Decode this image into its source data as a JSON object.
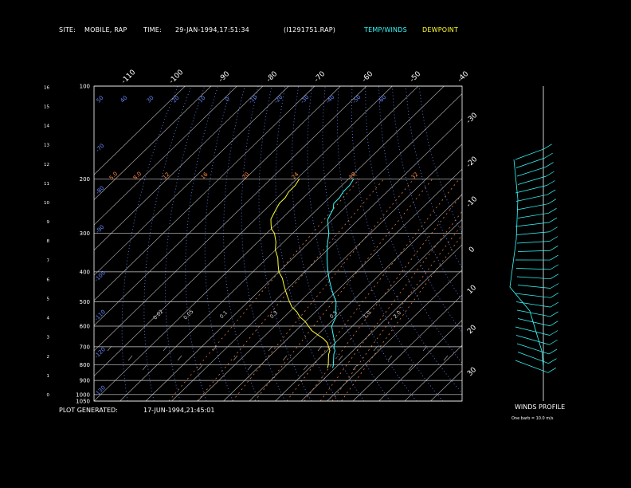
{
  "header": {
    "site_label": "SITE:",
    "site_value": "MOBILE, RAP",
    "time_label": "TIME:",
    "time_value": "29-JAN-1994,17:51:34",
    "file_value": "(I1291751.RAP)",
    "legend_temp": "TEMP/WINDS",
    "legend_dew": "DEWPOINT"
  },
  "footer": {
    "generated_label": "PLOT GENERATED:",
    "generated_value": "17-JUN-1994,21:45:01",
    "winds_title": "WINDS PROFILE",
    "barb_note": "One barb = 10.0 m/s"
  },
  "colors": {
    "temp": "#33ffff",
    "dewpoint": "#ffff33",
    "isotherm": "#bbbbbb",
    "dry_adiabat": "#6688ff",
    "mixing_ratio": "#ff8844",
    "frame": "#ffffff"
  },
  "chart_data": {
    "type": "line",
    "title": "",
    "pressure_labels": [
      "100",
      "200",
      "300",
      "400",
      "500",
      "600",
      "700",
      "800",
      "900",
      "1000",
      "1050"
    ],
    "pressure_levels": [
      100,
      200,
      300,
      400,
      500,
      600,
      700,
      800,
      900,
      1000,
      1050
    ],
    "height_km_labels": [
      "0",
      "1",
      "2",
      "3",
      "4",
      "5",
      "6",
      "7",
      "8",
      "9",
      "10",
      "11",
      "12",
      "13",
      "14",
      "15",
      "16"
    ],
    "isotherm_top_labels": [
      "-110",
      "-100",
      "-90",
      "-80",
      "-70",
      "-60",
      "-50",
      "-40"
    ],
    "isotherm_right_labels": [
      "-30",
      "-20",
      "-10",
      "0",
      "10",
      "20",
      "30"
    ],
    "theta_labels": [
      "50",
      "40",
      "30",
      "20",
      "10",
      "0",
      "-10",
      "-20",
      "-30",
      "-40",
      "-50",
      "-60"
    ],
    "theta_row2": [
      "-70",
      "-80",
      "-90",
      "-100",
      "-110",
      "-120",
      "-130",
      "-140",
      "-150"
    ],
    "mixing_ratio_labels": [
      "2.0",
      "1.0",
      "0.5",
      "0.3",
      "0.1",
      "0.05",
      "0.02"
    ],
    "mixing_ratio_row2": [
      "5.0",
      "8.0",
      "12",
      "16",
      "20",
      "24",
      "28",
      "32"
    ],
    "series": [
      {
        "name": "TEMP/WINDS",
        "pressure": [
          820,
          800,
          770,
          740,
          720,
          700,
          680,
          660,
          640,
          620,
          600,
          580,
          560,
          540,
          520,
          500,
          480,
          460,
          440,
          420,
          400,
          380,
          360,
          340,
          320,
          300,
          290,
          280,
          270,
          260,
          250,
          240,
          230,
          220,
          210,
          200
        ],
        "temp_c": [
          9,
          8,
          6,
          4,
          3,
          1,
          0,
          -2,
          -4,
          -6,
          -8,
          -9,
          -10,
          -12,
          -14,
          -16,
          -19,
          -22,
          -25,
          -28,
          -31,
          -34,
          -37,
          -40,
          -43,
          -46,
          -48,
          -50,
          -52,
          -53,
          -54,
          -56,
          -56,
          -57,
          -57,
          -58
        ]
      },
      {
        "name": "DEWPOINT",
        "pressure": [
          820,
          800,
          770,
          740,
          720,
          700,
          680,
          660,
          640,
          620,
          600,
          580,
          560,
          540,
          520,
          500,
          480,
          460,
          440,
          420,
          400,
          380,
          360,
          340,
          320,
          300,
          290,
          280,
          270,
          260,
          250,
          240,
          230,
          220,
          210,
          200
        ],
        "temp_c": [
          7,
          6,
          4,
          2,
          1,
          -1,
          -3,
          -6,
          -10,
          -14,
          -17,
          -20,
          -24,
          -27,
          -31,
          -34,
          -37,
          -40,
          -43,
          -46,
          -50,
          -53,
          -56,
          -60,
          -63,
          -67,
          -70,
          -72,
          -74,
          -75,
          -76,
          -77,
          -77,
          -78,
          -78,
          -79
        ]
      }
    ],
    "wind_barbs": 25
  }
}
